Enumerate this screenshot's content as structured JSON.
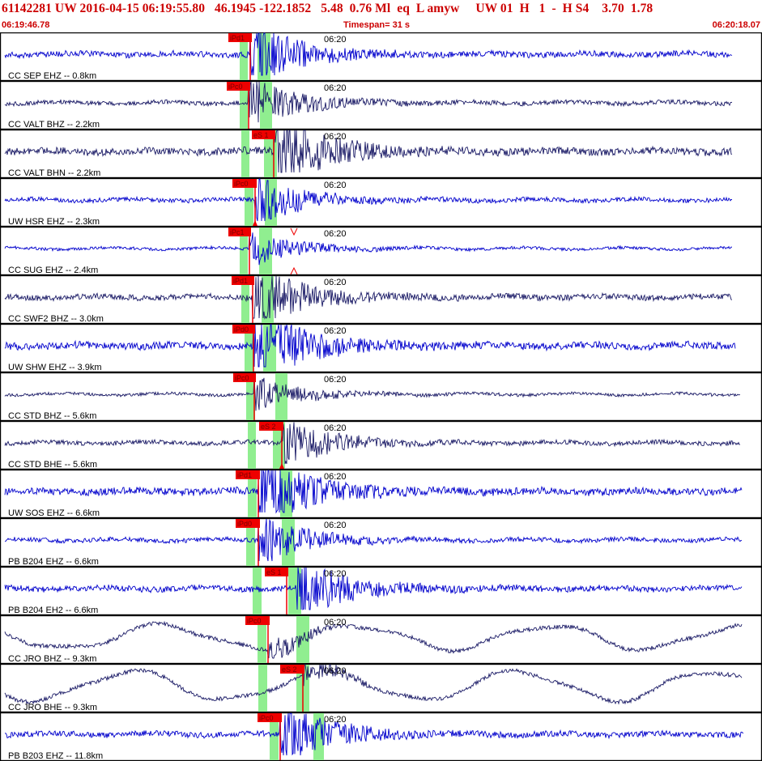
{
  "header": {
    "summary": "61142281 UW 2016-04-15 06:19:55.80   46.1945 -122.1852   5.48  0.76 Ml  eq  L amyw     UW 01  H   1  -  H S4    3.70  1.78",
    "start_time": "06:19:46.78",
    "timespan": "Timespan=  31 s",
    "end_time": "06:20:18.07"
  },
  "colors": {
    "pick_red": "#ee0000",
    "window_green": "#90ee90",
    "trace_blue": "#0000cc",
    "trace_navy": "#1a1a66",
    "text_red": "#cc0000",
    "frame": "#000000"
  },
  "time_label": "06:20",
  "traces": [
    {
      "label": "CC SEP EHZ -- 0.8km",
      "pick": "iPd1",
      "color": "blue",
      "amp": 4
    },
    {
      "label": "CC VALT BHZ -- 2.2km",
      "pick": "iPc0",
      "color": "navy",
      "amp": 3
    },
    {
      "label": "CC VALT BHN -- 2.2km",
      "pick": "eS 1",
      "color": "navy",
      "amp": 5
    },
    {
      "label": "UW HSR EHZ -- 2.3km",
      "pick": "iPc0",
      "color": "blue",
      "amp": 3
    },
    {
      "label": "CC SUG EHZ -- 2.4km",
      "pick": "iPc1",
      "color": "blue",
      "amp": 2
    },
    {
      "label": "CC SWF2 BHZ -- 3.0km",
      "pick": "iPd1",
      "color": "navy",
      "amp": 4
    },
    {
      "label": "UW SHW EHZ -- 3.9km",
      "pick": "iPd0",
      "color": "blue",
      "amp": 5
    },
    {
      "label": "CC STD BHZ -- 5.6km",
      "pick": "iPc0",
      "color": "navy",
      "amp": 2
    },
    {
      "label": "CC STD BHE -- 5.6km",
      "pick": "eS 2",
      "color": "navy",
      "amp": 3
    },
    {
      "label": "UW SOS EHZ -- 6.6km",
      "pick": "iPd1",
      "color": "blue",
      "amp": 5
    },
    {
      "label": "PB B204 EHZ -- 6.6km",
      "pick": "iPd0",
      "color": "blue",
      "amp": 3
    },
    {
      "label": "PB B204 EH2 -- 6.6km",
      "pick": "eS 1",
      "color": "blue",
      "amp": 4
    },
    {
      "label": "CC JRO BHZ -- 9.3km",
      "pick": "iPc0",
      "color": "navy",
      "amp": 18
    },
    {
      "label": "CC JRO BHE -- 9.3km",
      "pick": "eS 2",
      "color": "navy",
      "amp": 22
    },
    {
      "label": "PB B203 EHZ -- 11.8km",
      "pick": "iPc0",
      "color": "blue",
      "amp": 4
    }
  ]
}
